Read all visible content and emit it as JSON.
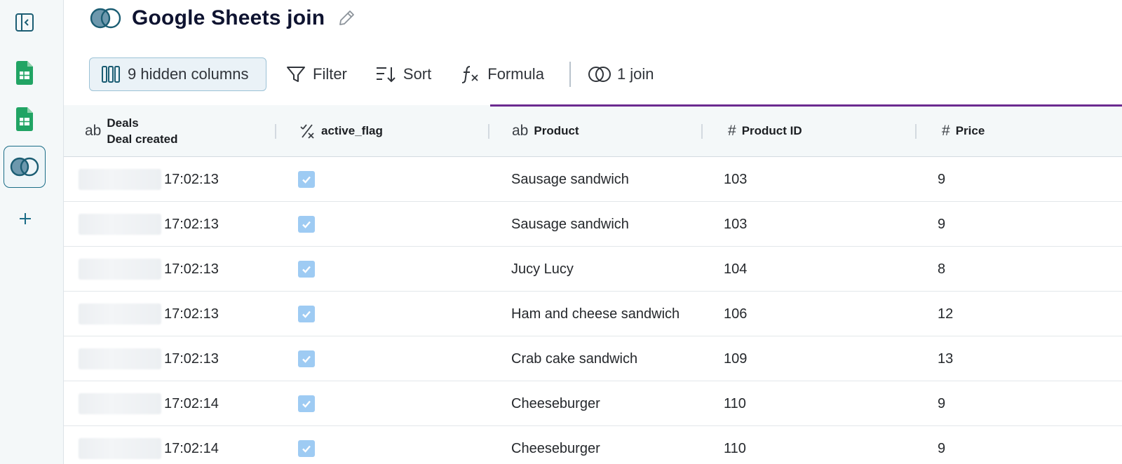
{
  "title": "Google Sheets join",
  "toolbar": {
    "hidden_columns": "9 hidden columns",
    "filter": "Filter",
    "sort": "Sort",
    "formula": "Formula",
    "join": "1 join"
  },
  "columns": [
    {
      "type_icon": "text-type-icon",
      "label_line1": "Deals",
      "label_line2": "Deal created"
    },
    {
      "type_icon": "boolean-type-icon",
      "label": "active_flag"
    },
    {
      "type_icon": "text-type-icon",
      "label": "Product"
    },
    {
      "type_icon": "number-type-icon",
      "label": "Product ID"
    },
    {
      "type_icon": "number-type-icon",
      "label": "Price"
    }
  ],
  "type_glyphs": {
    "text": "ab",
    "number": "#"
  },
  "rows": [
    {
      "time": "17:02:13",
      "active": true,
      "product": "Sausage sandwich",
      "product_id": "103",
      "price": "9"
    },
    {
      "time": "17:02:13",
      "active": true,
      "product": "Sausage sandwich",
      "product_id": "103",
      "price": "9"
    },
    {
      "time": "17:02:13",
      "active": true,
      "product": "Jucy Lucy",
      "product_id": "104",
      "price": "8"
    },
    {
      "time": "17:02:13",
      "active": true,
      "product": "Ham and cheese sandwich",
      "product_id": "106",
      "price": "12"
    },
    {
      "time": "17:02:13",
      "active": true,
      "product": "Crab cake sandwich",
      "product_id": "109",
      "price": "13"
    },
    {
      "time": "17:02:14",
      "active": true,
      "product": "Cheeseburger",
      "product_id": "110",
      "price": "9"
    },
    {
      "time": "17:02:14",
      "active": true,
      "product": "Cheeseburger",
      "product_id": "110",
      "price": "9"
    }
  ],
  "colors": {
    "accent": "#1b6d87",
    "sheets_green": "#21a464",
    "checkbox": "#9ecbf3",
    "join_bar": "#6b2a90"
  }
}
